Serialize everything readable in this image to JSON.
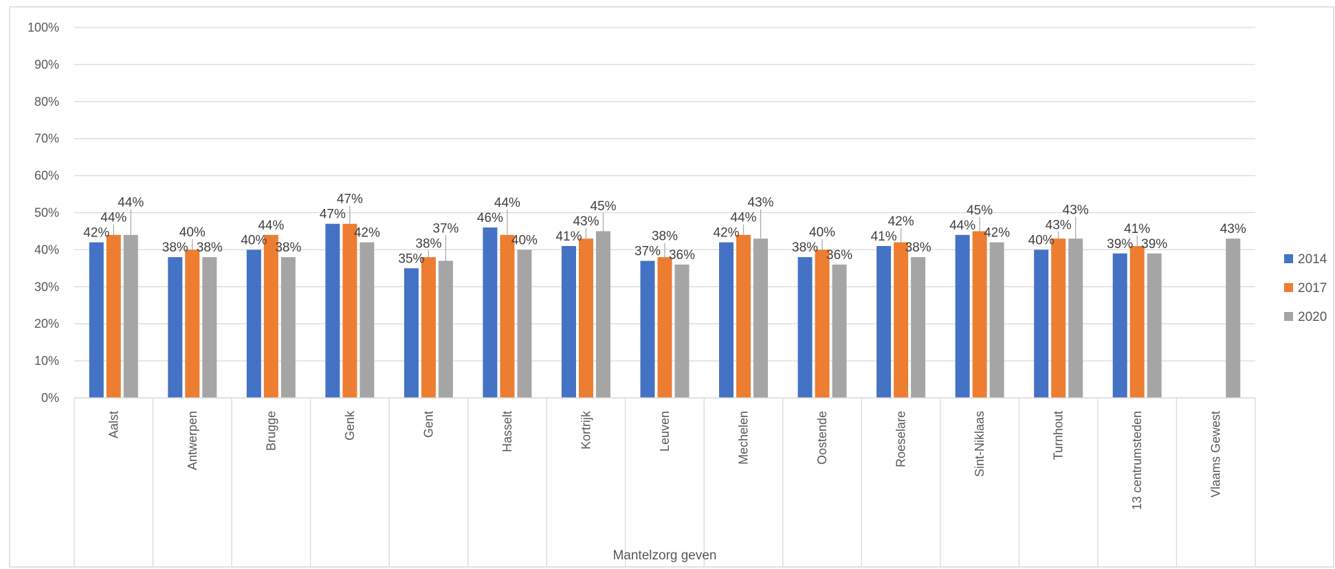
{
  "chart_data": {
    "type": "bar",
    "categories": [
      "Aalst",
      "Antwerpen",
      "Brugge",
      "Genk",
      "Gent",
      "Hasselt",
      "Kortrijk",
      "Leuven",
      "Mechelen",
      "Oostende",
      "Roeselare",
      "Sint-Niklaas",
      "Turnhout",
      "13 centrumsteden",
      "Vlaams Gewest"
    ],
    "series": [
      {
        "name": "2014",
        "color": "#4472C4",
        "values": [
          42,
          38,
          40,
          47,
          35,
          46,
          41,
          37,
          42,
          38,
          41,
          44,
          40,
          39,
          null
        ]
      },
      {
        "name": "2017",
        "color": "#ED7D31",
        "values": [
          44,
          40,
          44,
          47,
          38,
          44,
          43,
          38,
          44,
          40,
          42,
          45,
          43,
          41,
          null
        ]
      },
      {
        "name": "2020",
        "color": "#A5A5A5",
        "values": [
          44,
          38,
          38,
          42,
          37,
          40,
          45,
          36,
          43,
          36,
          38,
          42,
          43,
          39,
          43
        ]
      }
    ],
    "data_labels": [
      [
        "42%",
        "38%",
        "40%",
        "47%",
        "35%",
        "46%",
        "41%",
        "37%",
        "42%",
        "38%",
        "41%",
        "44%",
        "40%",
        "39%",
        ""
      ],
      [
        "44%",
        "40%",
        "44%",
        "47%",
        "38%",
        "44%",
        "43%",
        "38%",
        "44%",
        "40%",
        "42%",
        "45%",
        "43%",
        "41%",
        ""
      ],
      [
        "44%",
        "38%",
        "38%",
        "42%",
        "37%",
        "40%",
        "45%",
        "36%",
        "43%",
        "36%",
        "38%",
        "42%",
        "43%",
        "39%",
        "43%"
      ]
    ],
    "ytick_labels": [
      "0%",
      "10%",
      "20%",
      "30%",
      "40%",
      "50%",
      "60%",
      "70%",
      "80%",
      "90%",
      "100%"
    ],
    "ylim": [
      0,
      100
    ],
    "xlabel": "Mantelzorg geven",
    "ylabel": "",
    "title": "",
    "grid": true,
    "legend": "right"
  }
}
